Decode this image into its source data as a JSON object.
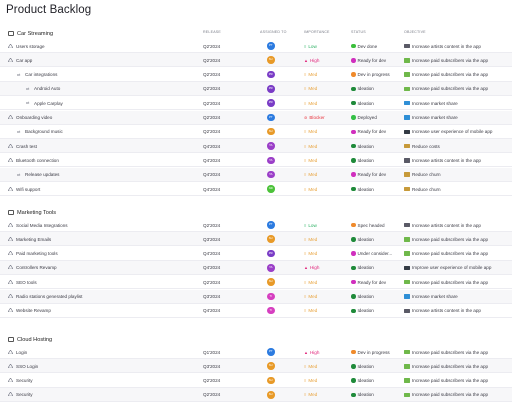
{
  "page": {
    "title": "Product Backlog"
  },
  "columns": {
    "release": "RELEASE",
    "assigned": "ASSIGNED TO",
    "importance": "IMPORTANCE",
    "status": "STATUS",
    "objective": "OBJECTIVE"
  },
  "colors": {
    "low": "#27ae60",
    "high": "#e0227a",
    "med": "#e8a23b",
    "blocker": "#e8323c",
    "status_done": "#3cbf3c",
    "status_ready": "#d02fbe",
    "status_progress": "#ef8a2b",
    "status_deployed": "#35c047",
    "status_idea": "#1f8a3a"
  },
  "groups": [
    {
      "title": "Car Streaming",
      "rows": [
        {
          "name": "Users storage",
          "level": 0,
          "release": "Q2'2024",
          "avatar": "PT",
          "avatar_color": "#2c7be0",
          "importance": "Low",
          "imp_key": "low",
          "status": "Dev done",
          "status_key": "status_done",
          "objective": "Increase artists content in the app",
          "obj_icon": "pen-icon"
        },
        {
          "name": "Car app",
          "level": 0,
          "release": "Q2'2024",
          "avatar": "SU",
          "avatar_color": "#e89a28",
          "importance": "High",
          "imp_key": "high",
          "status": "Ready for dev",
          "status_key": "status_ready",
          "objective": "Increase paid subscribers via the app",
          "obj_icon": "money-icon"
        },
        {
          "name": "Car integrations",
          "level": 1,
          "release": "Q2'2024",
          "avatar": "PR",
          "avatar_color": "#7a3cc6",
          "importance": "Med",
          "imp_key": "med",
          "status": "Dev in progress",
          "status_key": "status_progress",
          "objective": "Increase paid subscribers via the app",
          "obj_icon": "money-icon"
        },
        {
          "name": "Android Auto",
          "level": 2,
          "release": "Q2'2024",
          "avatar": "PR",
          "avatar_color": "#7a3cc6",
          "importance": "Med",
          "imp_key": "med",
          "status": "Ideation",
          "status_key": "status_idea",
          "objective": "Increase paid subscribers via the app",
          "obj_icon": "money-icon"
        },
        {
          "name": "Apple Carplay",
          "level": 2,
          "release": "Q2'2024",
          "avatar": "PR",
          "avatar_color": "#7a3cc6",
          "importance": "Med",
          "imp_key": "med",
          "status": "Ideation",
          "status_key": "status_idea",
          "objective": "Increase market share",
          "obj_icon": "chart-icon"
        },
        {
          "name": "Onboarding video",
          "level": 0,
          "release": "Q2'2024",
          "avatar": "PT",
          "avatar_color": "#2c7be0",
          "importance": "Blocker",
          "imp_key": "blocker",
          "status": "Deployed",
          "status_key": "status_deployed",
          "objective": "Increase market share",
          "obj_icon": "chart-icon"
        },
        {
          "name": "Background music",
          "level": 1,
          "release": "Q2'2024",
          "avatar": "SU",
          "avatar_color": "#e89a28",
          "importance": "Med",
          "imp_key": "med",
          "status": "Ready for dev",
          "status_key": "status_ready",
          "objective": "Increase user experience of mobile app",
          "obj_icon": "phone-icon"
        },
        {
          "name": "Crash test",
          "level": 0,
          "release": "Q4'2024",
          "avatar": "TA",
          "avatar_color": "#9b3fc8",
          "importance": "Med",
          "imp_key": "med",
          "status": "Ideation",
          "status_key": "status_idea",
          "objective": "Reduce costs",
          "obj_icon": "dollar-icon"
        },
        {
          "name": "Bluetooth connection",
          "level": 0,
          "release": "Q4'2024",
          "avatar": "TA",
          "avatar_color": "#9b3fc8",
          "importance": "Med",
          "imp_key": "med",
          "status": "Ideation",
          "status_key": "status_idea",
          "objective": "Increase artists content in the app",
          "obj_icon": "pen-icon"
        },
        {
          "name": "Release updates",
          "level": 1,
          "release": "Q4'2024",
          "avatar": "TA",
          "avatar_color": "#9b3fc8",
          "importance": "Med",
          "imp_key": "med",
          "status": "Ready for dev",
          "status_key": "status_ready",
          "objective": "Reduce churn",
          "obj_icon": "dollar-icon"
        },
        {
          "name": "Wifi support",
          "level": 0,
          "release": "Q4'2024",
          "avatar": "ND",
          "avatar_color": "#4cc23a",
          "importance": "Med",
          "imp_key": "med",
          "status": "Ideation",
          "status_key": "status_idea",
          "objective": "Reduce churn",
          "obj_icon": "dollar-icon"
        }
      ]
    },
    {
      "title": "Marketing Tools",
      "rows": [
        {
          "name": "Social Media Integrations",
          "level": 0,
          "release": "Q2'2024",
          "avatar": "PT",
          "avatar_color": "#2c7be0",
          "importance": "Low",
          "imp_key": "low",
          "status": "Spec headed",
          "status_key": "status_progress",
          "objective": "Increase artists content in the app",
          "obj_icon": "pen-icon"
        },
        {
          "name": "Marketing Emails",
          "level": 0,
          "release": "Q3'2024",
          "avatar": "SU",
          "avatar_color": "#e89a28",
          "importance": "Med",
          "imp_key": "med",
          "status": "Ideation",
          "status_key": "status_idea",
          "objective": "Increase paid subscribers via the app",
          "obj_icon": "money-icon"
        },
        {
          "name": "Paid marketing tools",
          "level": 0,
          "release": "Q4'2024",
          "avatar": "PR",
          "avatar_color": "#7a3cc6",
          "importance": "Med",
          "imp_key": "med",
          "status": "Under consider...",
          "status_key": "status_ready",
          "objective": "Increase paid subscribers via the app",
          "obj_icon": "money-icon"
        },
        {
          "name": "Controllers Revamp",
          "level": 0,
          "release": "Q4'2024",
          "avatar": "TA",
          "avatar_color": "#9b3fc8",
          "importance": "High",
          "imp_key": "high",
          "status": "Ideation",
          "status_key": "status_idea",
          "objective": "Improve user experience of mobile app",
          "obj_icon": "phone-icon"
        },
        {
          "name": "SEO tools",
          "level": 0,
          "release": "Q2'2024",
          "avatar": "SU",
          "avatar_color": "#e89a28",
          "importance": "Med",
          "imp_key": "med",
          "status": "Ready for dev",
          "status_key": "status_ready",
          "objective": "Increase paid subscribers via the app",
          "obj_icon": "money-icon"
        },
        {
          "name": "Radio stations generated playlist",
          "level": 0,
          "release": "Q3'2024",
          "avatar": "TI",
          "avatar_color": "#d63fc0",
          "importance": "Med",
          "imp_key": "med",
          "status": "Ideation",
          "status_key": "status_idea",
          "objective": "Increase market share",
          "obj_icon": "chart-icon"
        },
        {
          "name": "Website Revamp",
          "level": 0,
          "release": "Q4'2024",
          "avatar": "TI",
          "avatar_color": "#d63fc0",
          "importance": "Med",
          "imp_key": "med",
          "status": "Ideation",
          "status_key": "status_idea",
          "objective": "Increase artists content in the app",
          "obj_icon": "pen-icon"
        }
      ]
    },
    {
      "title": "Cloud Hosting",
      "rows": [
        {
          "name": "Login",
          "level": 0,
          "release": "Q1'2024",
          "avatar": "PT",
          "avatar_color": "#2c7be0",
          "importance": "High",
          "imp_key": "high",
          "status": "Dev in progress",
          "status_key": "status_progress",
          "objective": "Increase paid subscribers via the app",
          "obj_icon": "money-icon"
        },
        {
          "name": "SSO Login",
          "level": 0,
          "release": "Q3'2024",
          "avatar": "SU",
          "avatar_color": "#e89a28",
          "importance": "Med",
          "imp_key": "med",
          "status": "Ideation",
          "status_key": "status_idea",
          "objective": "Increase paid subscribers via the app",
          "obj_icon": "money-icon"
        },
        {
          "name": "Security",
          "level": 0,
          "release": "Q2'2024",
          "avatar": "SU",
          "avatar_color": "#e89a28",
          "importance": "Med",
          "imp_key": "med",
          "status": "Ideation",
          "status_key": "status_idea",
          "objective": "Increase paid subscribers via the app",
          "obj_icon": "money-icon"
        },
        {
          "name": "Security",
          "level": 0,
          "release": "Q2'2024",
          "avatar": "SU",
          "avatar_color": "#e89a28",
          "importance": "Med",
          "imp_key": "med",
          "status": "Ideation",
          "status_key": "status_idea",
          "objective": "Increase paid subscribers via the app",
          "obj_icon": "money-icon"
        }
      ]
    }
  ]
}
